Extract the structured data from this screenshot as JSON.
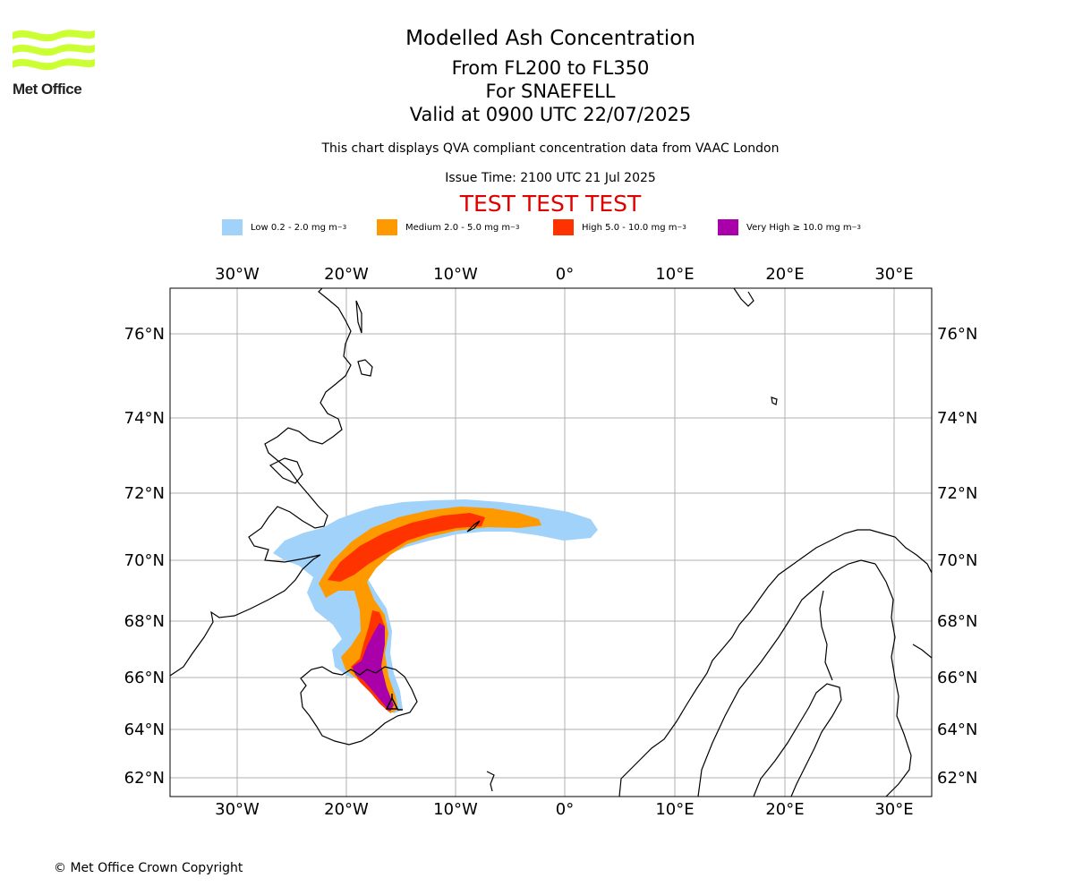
{
  "logo": {
    "text": "Met Office",
    "accent_color": "#ccff33",
    "icon": "met-office-wave-logo"
  },
  "header": {
    "title": "Modelled Ash Concentration",
    "flight_levels": "From FL200 to FL350",
    "volcano": "For SNAEFELL",
    "valid_time": "Valid at 0900 UTC 22/07/2025",
    "note": "This chart displays QVA compliant concentration data from VAAC London",
    "issue_time": "Issue Time: 2100 UTC 21 Jul 2025",
    "test_banner": "TEST TEST TEST",
    "test_color": "#e00000"
  },
  "legend": [
    {
      "label": "Low 0.2 - 2.0 mg m",
      "exp": "−3",
      "color": "#a0d2fa"
    },
    {
      "label": "Medium 2.0 - 5.0 mg m",
      "exp": "−3",
      "color": "#ff9900"
    },
    {
      "label": "High 5.0 - 10.0 mg m",
      "exp": "−3",
      "color": "#ff3300"
    },
    {
      "label": "Very High  ≥  10.0 mg m",
      "exp": "−3",
      "color": "#aa00aa"
    }
  ],
  "map": {
    "lon_ticks": [
      "30°W",
      "20°W",
      "10°W",
      "0°",
      "10°E",
      "20°E",
      "30°E"
    ],
    "lat_ticks": [
      "76°N",
      "74°N",
      "72°N",
      "70°N",
      "68°N",
      "66°N",
      "64°N",
      "62°N"
    ],
    "grid": true,
    "source_marker": "volcano-triangle"
  },
  "footer": {
    "copyright": "© Met Office Crown Copyright"
  }
}
